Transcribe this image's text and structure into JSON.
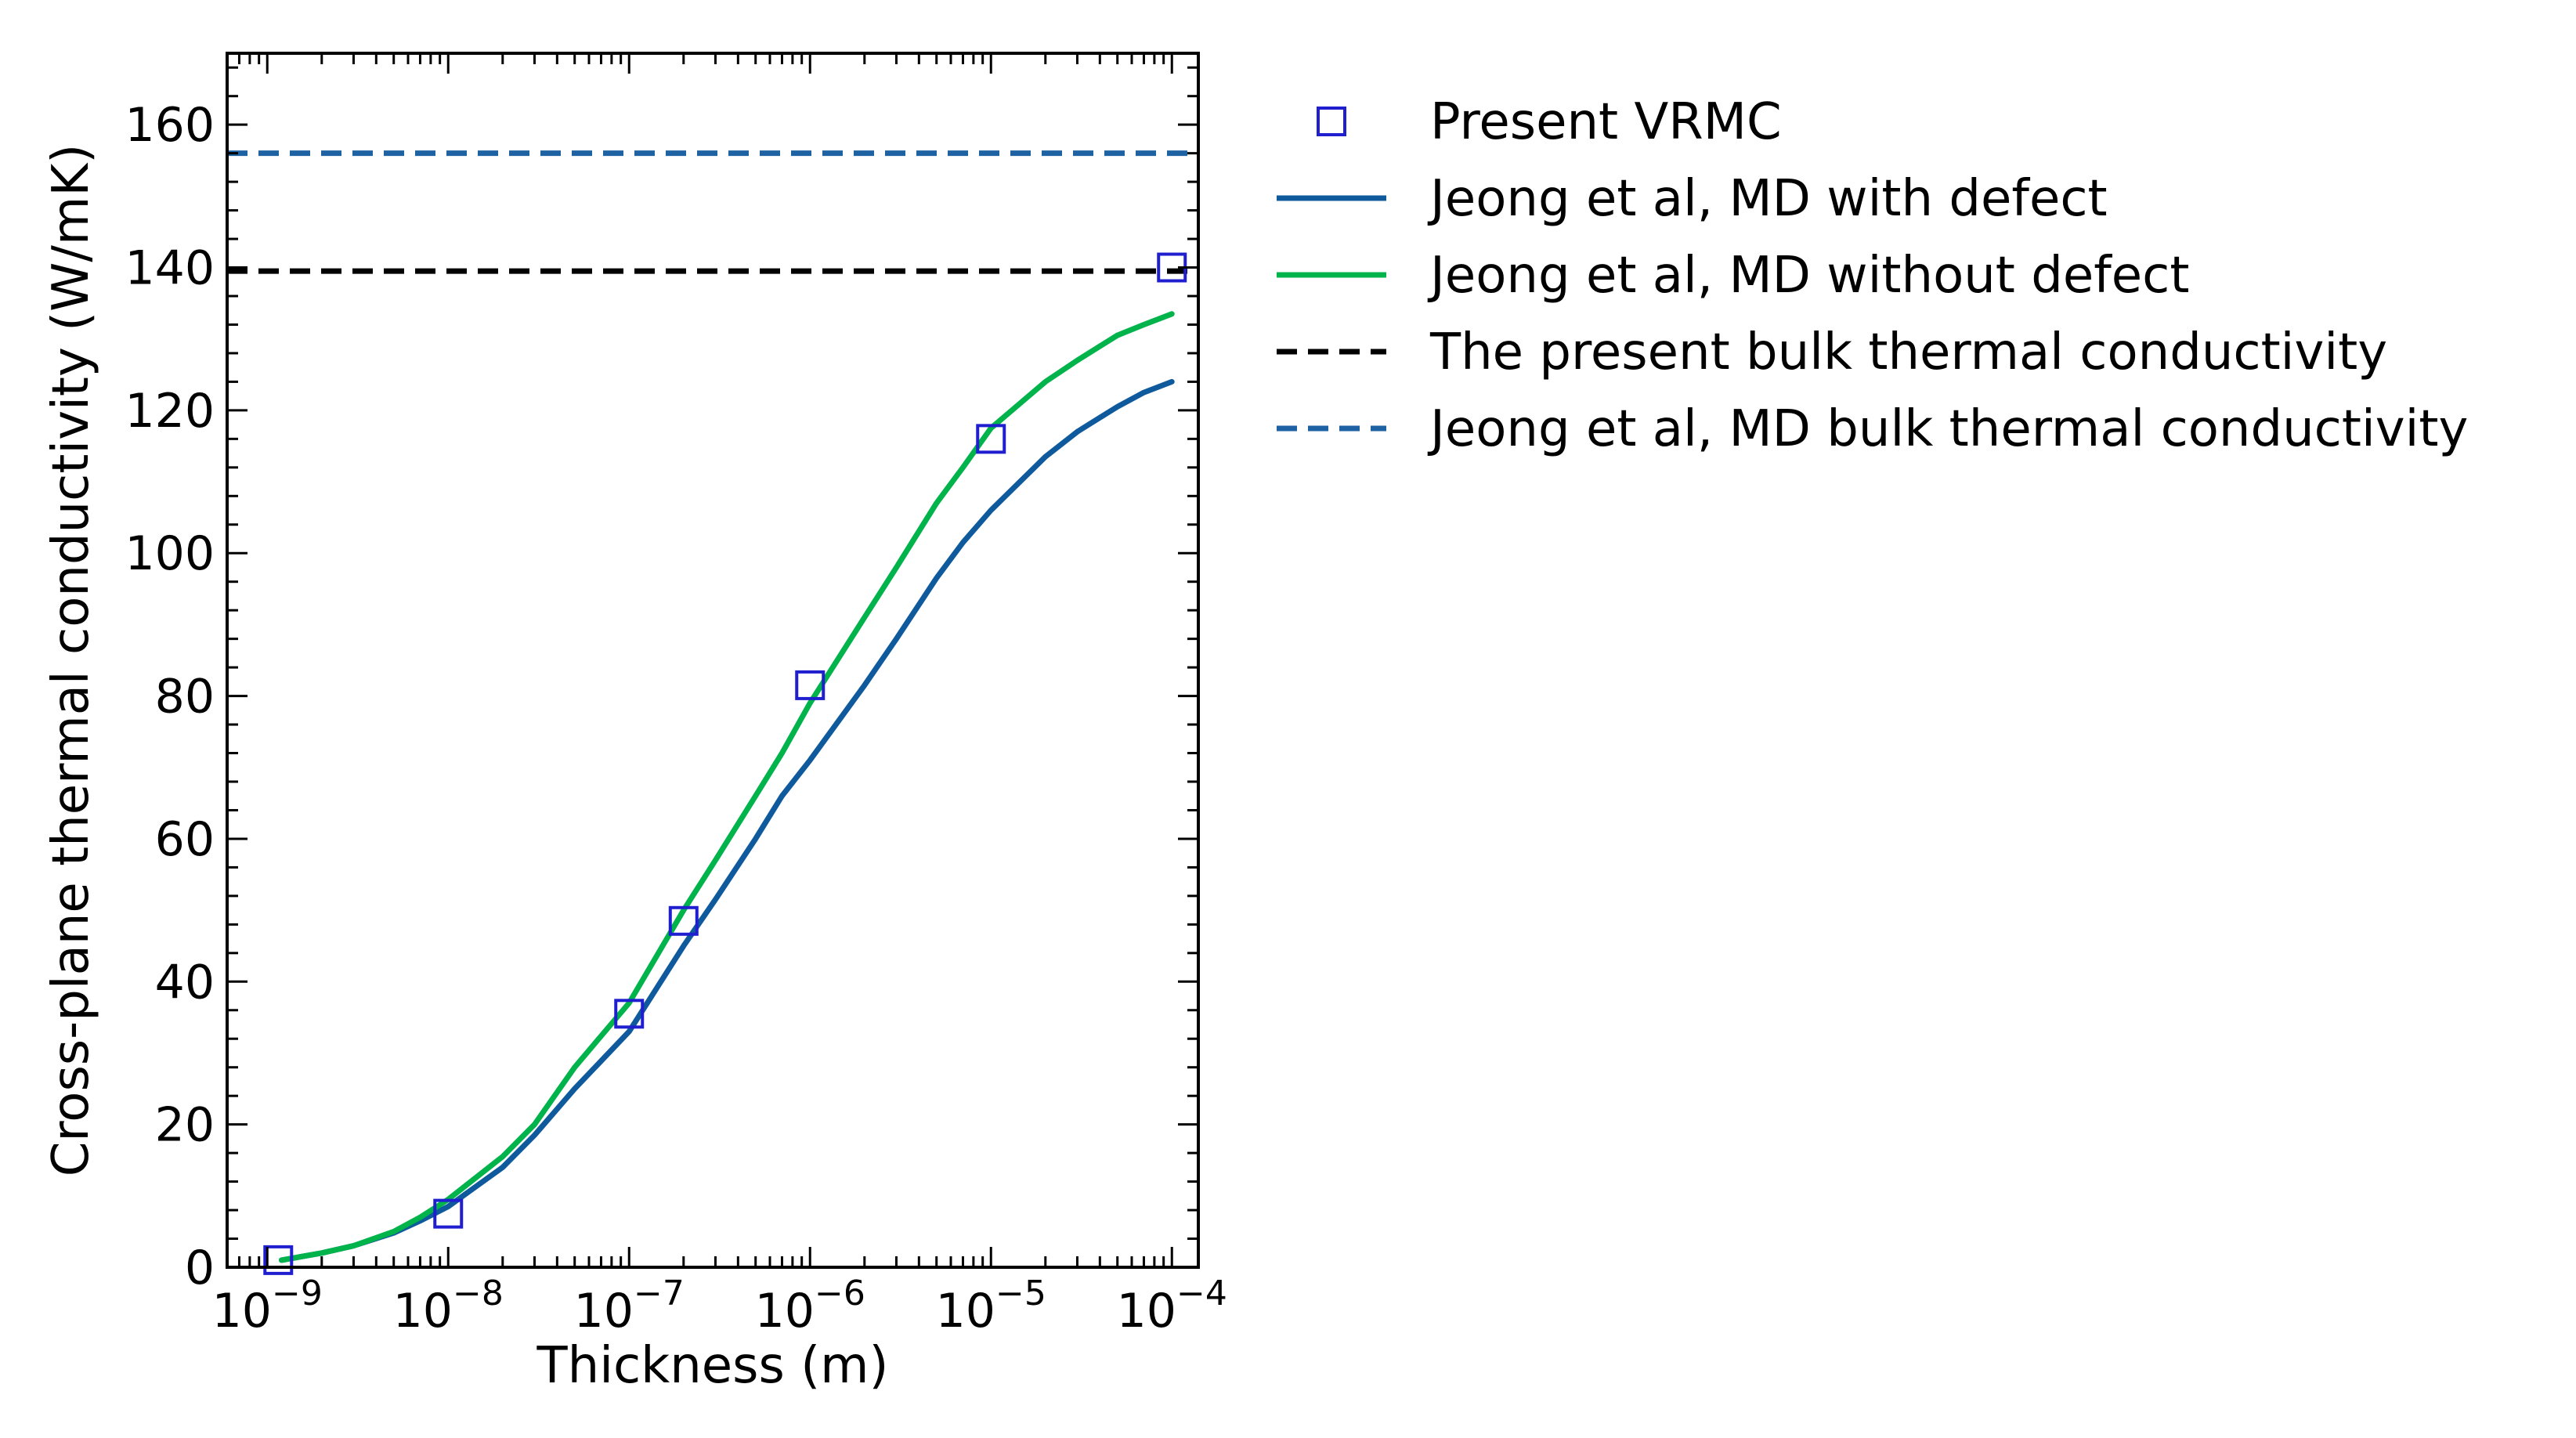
{
  "chart_data": {
    "type": "line",
    "xlabel": "Thickness (m)",
    "ylabel": "Cross-plane thermal conductivity (W/mK)",
    "xscale": "log",
    "xlim": [
      6e-10,
      0.00014
    ],
    "ylim": [
      0,
      170
    ],
    "xticks": [
      {
        "value": 1e-09,
        "base": "10",
        "exp": "−9"
      },
      {
        "value": 1e-08,
        "base": "10",
        "exp": "−8"
      },
      {
        "value": 1e-07,
        "base": "10",
        "exp": "−7"
      },
      {
        "value": 1e-06,
        "base": "10",
        "exp": "−6"
      },
      {
        "value": 1e-05,
        "base": "10",
        "exp": "−5"
      },
      {
        "value": 0.0001,
        "base": "10",
        "exp": "−4"
      }
    ],
    "yticks": [
      0,
      20,
      40,
      60,
      80,
      100,
      120,
      140,
      160
    ],
    "grid": false,
    "legend_position": "outside-right",
    "series": [
      {
        "name": "Present VRMC",
        "kind": "scatter",
        "marker": "open-square",
        "color": "#1f1fcf",
        "x": [
          1.15e-09,
          1e-08,
          1e-07,
          2e-07,
          1e-06,
          1e-05,
          0.0001
        ],
        "y": [
          1.0,
          7.5,
          35.5,
          48.5,
          81.5,
          116,
          140
        ]
      },
      {
        "name": "Jeong et al, MD with defect",
        "kind": "line",
        "style": "solid",
        "color": "#0f5a9c",
        "x": [
          1.2e-09,
          2e-09,
          3e-09,
          5e-09,
          7e-09,
          1e-08,
          2e-08,
          3e-08,
          5e-08,
          1e-07,
          2e-07,
          3e-07,
          5e-07,
          7e-07,
          1e-06,
          2e-06,
          3e-06,
          5e-06,
          7e-06,
          1e-05,
          2e-05,
          3e-05,
          5e-05,
          7e-05,
          0.0001
        ],
        "y": [
          1.0,
          2.0,
          3.0,
          4.8,
          6.5,
          8.5,
          14.0,
          18.5,
          25.0,
          33.0,
          45.0,
          51.5,
          60.0,
          66.0,
          71.0,
          81.5,
          88.0,
          96.5,
          101.5,
          106.0,
          113.5,
          117.0,
          120.5,
          122.5,
          124.0
        ]
      },
      {
        "name": "Jeong et al, MD without defect",
        "kind": "line",
        "style": "solid",
        "color": "#00b34a",
        "x": [
          1.2e-09,
          2e-09,
          3e-09,
          5e-09,
          7e-09,
          1e-08,
          2e-08,
          3e-08,
          5e-08,
          1e-07,
          2e-07,
          3e-07,
          5e-07,
          7e-07,
          1e-06,
          2e-06,
          3e-06,
          5e-06,
          7e-06,
          1e-05,
          2e-05,
          3e-05,
          5e-05,
          7e-05,
          0.0001
        ],
        "y": [
          1.0,
          2.0,
          3.0,
          5.0,
          7.0,
          9.5,
          15.5,
          20.0,
          28.0,
          37.0,
          50.0,
          57.0,
          66.0,
          72.0,
          79.0,
          91.0,
          98.0,
          107.0,
          112.0,
          117.5,
          124.0,
          127.0,
          130.5,
          132.0,
          133.5
        ]
      },
      {
        "name": "The present bulk thermal conductivity",
        "kind": "hline",
        "style": "dashed",
        "color": "#000000",
        "y": 139.5
      },
      {
        "name": "Jeong et al, MD bulk thermal conductivity",
        "kind": "hline",
        "style": "dashed",
        "color": "#1f62a3",
        "y": 156
      }
    ]
  }
}
